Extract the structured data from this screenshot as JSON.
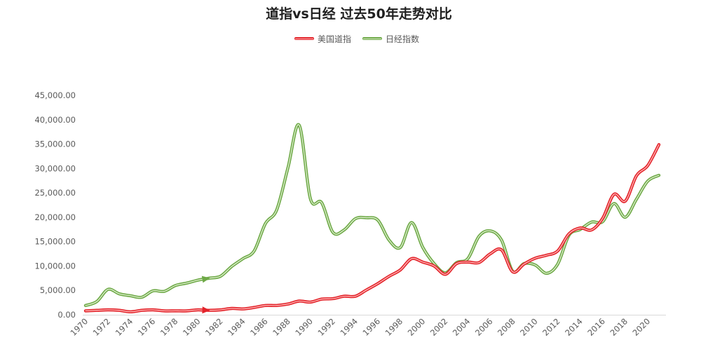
{
  "chart_data": {
    "type": "line",
    "title": "道指vs日经 过去50年走势对比",
    "smooth": true,
    "grid": false,
    "legend": "top",
    "xlim": [
      1970,
      2021
    ],
    "ylim": [
      0,
      45000
    ],
    "x": [
      1970,
      1971,
      1972,
      1973,
      1974,
      1975,
      1976,
      1977,
      1978,
      1979,
      1980,
      1981,
      1982,
      1983,
      1984,
      1985,
      1986,
      1987,
      1988,
      1989,
      1990,
      1991,
      1992,
      1993,
      1994,
      1995,
      1996,
      1997,
      1998,
      1999,
      2000,
      2001,
      2002,
      2003,
      2004,
      2005,
      2006,
      2007,
      2008,
      2009,
      2010,
      2011,
      2012,
      2013,
      2014,
      2015,
      2016,
      2017,
      2018,
      2019,
      2020,
      2021
    ],
    "x_tick_labels": [
      "1970",
      "1972",
      "1974",
      "1976",
      "1978",
      "1980",
      "1982",
      "1984",
      "1986",
      "1988",
      "1990",
      "1992",
      "1994",
      "1996",
      "1998",
      "2000",
      "2002",
      "2004",
      "2006",
      "2008",
      "2010",
      "2012",
      "2014",
      "2016",
      "2018",
      "2020"
    ],
    "y_ticks": [
      0,
      5000,
      10000,
      15000,
      20000,
      25000,
      30000,
      35000,
      40000,
      45000
    ],
    "y_tick_labels": [
      "0.00",
      "5,000.00",
      "10,000.00",
      "15,000.00",
      "20,000.00",
      "25,000.00",
      "30,000.00",
      "35,000.00",
      "40,000.00",
      "45,000.00"
    ],
    "series": [
      {
        "name": "美国道指",
        "color": "#e3242b",
        "highlight": "#ffb8b8",
        "values": [
          800,
          900,
          1000,
          900,
          600,
          900,
          1000,
          800,
          800,
          800,
          1000,
          900,
          1000,
          1300,
          1200,
          1500,
          1900,
          1900,
          2200,
          2800,
          2600,
          3200,
          3300,
          3800,
          3800,
          5100,
          6400,
          7900,
          9200,
          11500,
          10800,
          10000,
          8300,
          10500,
          10800,
          10700,
          12500,
          13300,
          8800,
          10400,
          11600,
          12200,
          13100,
          16600,
          17800,
          17400,
          19800,
          24700,
          23300,
          28500,
          30600,
          34900
        ]
      },
      {
        "name": "日经指数",
        "color": "#6ea947",
        "highlight": "#dff0d0",
        "values": [
          1900,
          2700,
          5200,
          4300,
          3900,
          3600,
          4900,
          4800,
          6000,
          6500,
          7100,
          7500,
          7900,
          9900,
          11500,
          13100,
          18700,
          21500,
          30100,
          38900,
          23800,
          23000,
          16900,
          17400,
          19700,
          19900,
          19400,
          15300,
          13800,
          18900,
          13800,
          10500,
          8600,
          10700,
          11500,
          16100,
          17200,
          15300,
          8900,
          10500,
          10200,
          8500,
          10400,
          16300,
          17500,
          19000,
          19100,
          22800,
          20000,
          23700,
          27400,
          28600
        ]
      }
    ]
  }
}
